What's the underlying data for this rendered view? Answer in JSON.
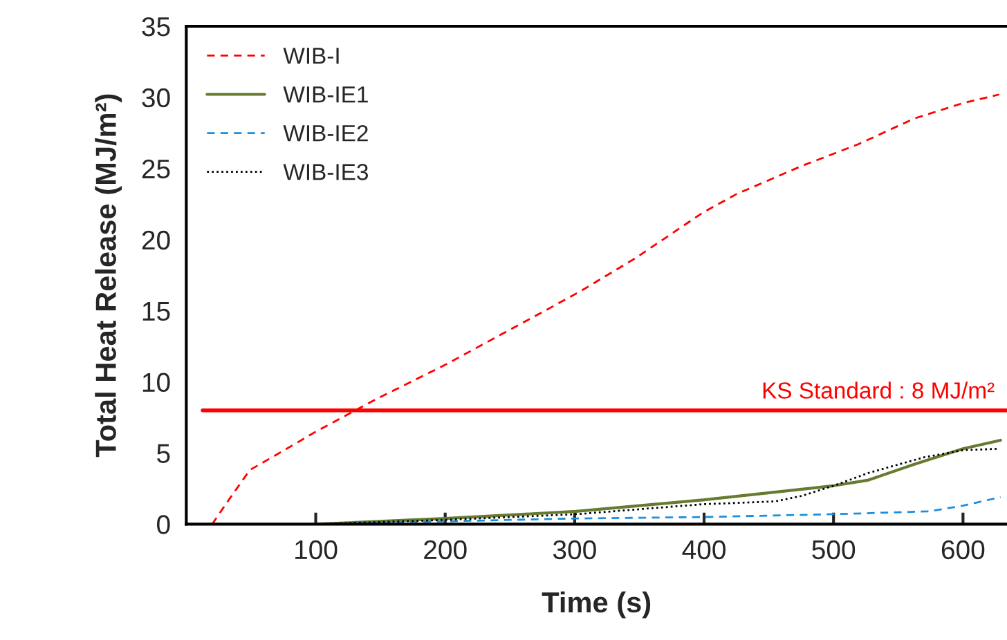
{
  "chart_data": {
    "type": "line",
    "xlabel": "Time (s)",
    "ylabel": "Total Heat Release (MJ/m²)",
    "xlim": [
      0,
      634
    ],
    "xticks": [
      100,
      200,
      300,
      400,
      500,
      600
    ],
    "ylim": [
      0,
      35
    ],
    "yticks": [
      0,
      5,
      10,
      15,
      20,
      25,
      30,
      35
    ],
    "grid": false,
    "legend": "top left",
    "marker": "none",
    "series": [
      {
        "name": "WIB-I",
        "color": "#ff0000",
        "line_style": "dashed",
        "x": [
          20,
          32,
          49,
          70,
          100,
          147,
          200,
          275,
          305,
          347,
          399,
          425,
          476,
          519,
          562,
          600,
          628
        ],
        "values": [
          0,
          1.6,
          3.8,
          4.9,
          6.5,
          8.8,
          11.2,
          14.9,
          16.4,
          18.7,
          21.9,
          23.2,
          25.2,
          26.7,
          28.5,
          29.6,
          30.2
        ]
      },
      {
        "name": "WIB-IE1",
        "color": "#667a30",
        "line_style": "solid",
        "x": [
          100,
          200,
          301,
          399,
          500,
          527,
          562,
          600,
          629
        ],
        "values": [
          0,
          0.4,
          0.9,
          1.7,
          2.7,
          3.1,
          4.2,
          5.3,
          5.9
        ]
      },
      {
        "name": "WIB-IE2",
        "color": "#1a8fe0",
        "line_style": "dashed",
        "x": [
          100,
          200,
          301,
          399,
          500,
          574,
          600,
          629
        ],
        "values": [
          0,
          0.2,
          0.4,
          0.5,
          0.7,
          0.9,
          1.3,
          1.9
        ]
      },
      {
        "name": "WIB-IE3",
        "color": "#000000",
        "line_style": "dotted",
        "x": [
          100,
          200,
          301,
          399,
          455,
          476,
          500,
          527,
          570,
          600,
          628
        ],
        "values": [
          0,
          0.3,
          0.7,
          1.4,
          1.6,
          2.0,
          2.7,
          3.6,
          4.7,
          5.2,
          5.3
        ]
      }
    ],
    "ref_lines": [
      {
        "axis": "y",
        "value": 8,
        "label": "KS Standard : 8 MJ/m²",
        "color": "#ff0000",
        "line_style": "solid"
      }
    ]
  }
}
